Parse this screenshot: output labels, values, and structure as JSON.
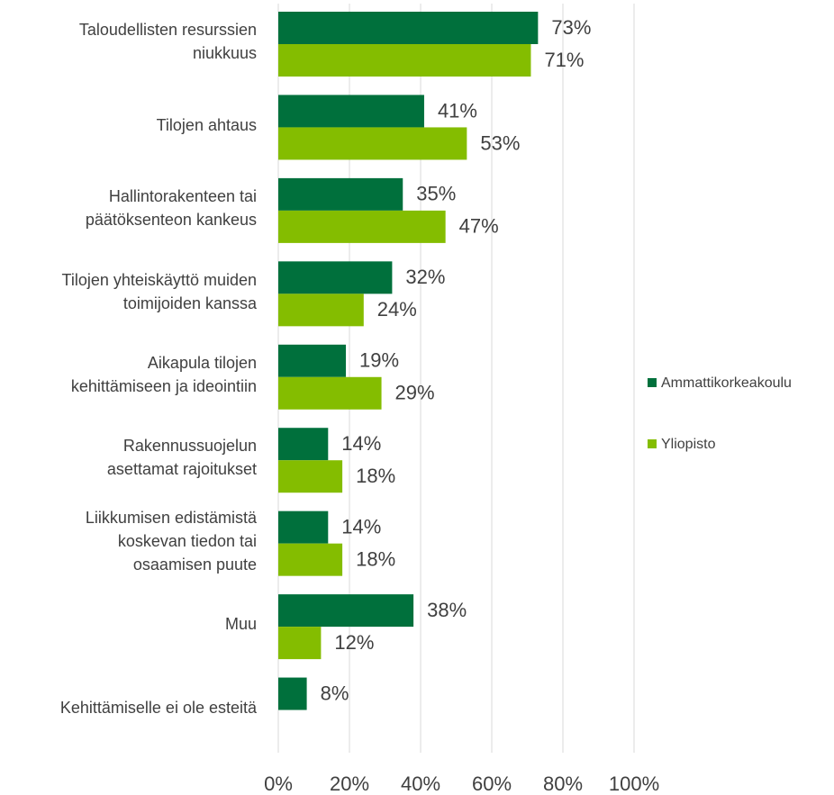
{
  "chart_data": {
    "type": "bar",
    "orientation": "horizontal",
    "categories": [
      "Taloudellisten resurssien\nniukkuus",
      "Tilojen ahtaus",
      "Hallintorakenteen tai\npäätöksenteon kankeus",
      "Tilojen yhteiskäyttö muiden\ntoimijoiden kanssa",
      "Aikapula tilojen\nkehittämiseen ja ideointiin",
      "Rakennussuojelun\nasettamat rajoitukset",
      "Liikkumisen edistämistä\nkoskevan tiedon tai\nosaamisen puute",
      "Muu",
      "Kehittämiselle ei ole esteitä"
    ],
    "series": [
      {
        "name": "Ammattikorkeakoulu",
        "color": "#00703c",
        "values": [
          73,
          41,
          35,
          32,
          19,
          14,
          14,
          38,
          8
        ],
        "value_labels": [
          "73%",
          "41%",
          "35%",
          "32%",
          "19%",
          "14%",
          "14%",
          "38%",
          "8%"
        ]
      },
      {
        "name": "Yliopisto",
        "color": "#84bd00",
        "values": [
          71,
          53,
          47,
          24,
          29,
          18,
          18,
          12,
          null
        ],
        "value_labels": [
          "71%",
          "53%",
          "47%",
          "24%",
          "29%",
          "18%",
          "18%",
          "12%",
          null
        ]
      }
    ],
    "xlim": [
      0,
      100
    ],
    "xticks": [
      {
        "value": 0,
        "label": "0%"
      },
      {
        "value": 20,
        "label": "20%"
      },
      {
        "value": 40,
        "label": "40%"
      },
      {
        "value": 60,
        "label": "60%"
      },
      {
        "value": 80,
        "label": "80%"
      },
      {
        "value": 100,
        "label": "100%"
      }
    ],
    "grid": true,
    "legend": "right"
  }
}
